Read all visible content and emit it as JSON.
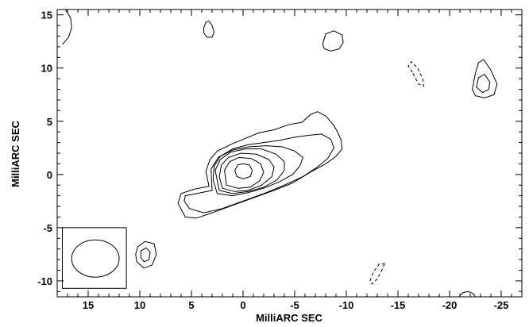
{
  "chart_data": {
    "type": "contour",
    "xlabel": "MilliARC SEC",
    "ylabel": "MilliARC SEC",
    "xlim": [
      18,
      -27
    ],
    "ylim": [
      -11.5,
      15.5
    ],
    "x_reversed": true,
    "x_ticks": [
      15,
      10,
      5,
      0,
      -5,
      -10,
      -15,
      -20,
      -25
    ],
    "y_ticks": [
      15,
      10,
      5,
      0,
      -5,
      -10
    ],
    "x_tick_labels": [
      "15",
      "10",
      "5",
      "0",
      "-5",
      "-10",
      "-15",
      "-20",
      "-25"
    ],
    "y_tick_labels": [
      "15",
      "10",
      "5",
      "0",
      "-5",
      "-10"
    ],
    "beam": {
      "center": [
        14.3,
        -7.9
      ],
      "radius_x": 2.3,
      "radius_y": 1.75,
      "box": [
        [
          17.5,
          -5.0
        ],
        [
          11.3,
          -10.7
        ]
      ]
    },
    "contours": [
      {
        "level": 1,
        "style": "solid",
        "points": [
          [
            3.3,
            -1.1
          ],
          [
            4.8,
            -1.4
          ],
          [
            6.0,
            -1.8
          ],
          [
            6.3,
            -2.7
          ],
          [
            5.6,
            -4.0
          ],
          [
            4.5,
            -4.1
          ],
          [
            3.0,
            -3.6
          ],
          [
            1.0,
            -2.9
          ],
          [
            -1.0,
            -2.2
          ],
          [
            -3.0,
            -1.5
          ],
          [
            -4.8,
            -0.8
          ],
          [
            -6.5,
            0.2
          ],
          [
            -8.0,
            1.0
          ],
          [
            -9.0,
            1.7
          ],
          [
            -9.6,
            2.4
          ],
          [
            -9.5,
            3.2
          ],
          [
            -9.2,
            3.9
          ],
          [
            -8.8,
            4.6
          ],
          [
            -8.0,
            5.5
          ],
          [
            -7.2,
            5.9
          ],
          [
            -6.5,
            5.6
          ],
          [
            -5.7,
            4.9
          ],
          [
            -4.5,
            4.7
          ],
          [
            -3.0,
            4.2
          ],
          [
            -1.5,
            3.9
          ],
          [
            0.0,
            3.3
          ],
          [
            1.0,
            2.9
          ],
          [
            2.5,
            2.2
          ],
          [
            3.2,
            1.4
          ],
          [
            3.6,
            0.3
          ],
          [
            3.3,
            -1.1
          ]
        ]
      },
      {
        "level": 2,
        "style": "solid",
        "points": [
          [
            3.0,
            -1.5
          ],
          [
            4.5,
            -1.8
          ],
          [
            5.6,
            -2.0
          ],
          [
            5.7,
            -2.5
          ],
          [
            5.2,
            -3.2
          ],
          [
            3.8,
            -3.6
          ],
          [
            2.0,
            -3.2
          ],
          [
            0.0,
            -2.5
          ],
          [
            -2.0,
            -1.8
          ],
          [
            -4.0,
            -1.0
          ],
          [
            -5.8,
            -0.2
          ],
          [
            -7.2,
            0.7
          ],
          [
            -8.2,
            1.5
          ],
          [
            -8.8,
            2.5
          ],
          [
            -8.5,
            3.3
          ],
          [
            -7.6,
            3.8
          ],
          [
            -6.5,
            3.7
          ],
          [
            -5.0,
            3.5
          ],
          [
            -3.5,
            3.2
          ],
          [
            -2.0,
            3.0
          ],
          [
            -0.5,
            2.8
          ],
          [
            1.0,
            2.4
          ],
          [
            2.4,
            1.6
          ],
          [
            3.1,
            0.5
          ],
          [
            3.0,
            -1.5
          ]
        ]
      },
      {
        "level": 3,
        "style": "solid",
        "points": [
          [
            2.5,
            -1.8
          ],
          [
            1.0,
            -2.0
          ],
          [
            -0.5,
            -1.7
          ],
          [
            -2.0,
            -1.3
          ],
          [
            -3.5,
            -0.7
          ],
          [
            -4.8,
            0.0
          ],
          [
            -5.5,
            0.8
          ],
          [
            -5.8,
            1.6
          ],
          [
            -5.0,
            2.2
          ],
          [
            -3.8,
            2.6
          ],
          [
            -2.2,
            2.7
          ],
          [
            -0.5,
            2.6
          ],
          [
            1.0,
            2.3
          ],
          [
            2.2,
            1.7
          ],
          [
            2.8,
            0.8
          ],
          [
            2.9,
            -0.5
          ],
          [
            2.5,
            -1.8
          ]
        ]
      },
      {
        "level": 4,
        "style": "solid",
        "points": [
          [
            2.3,
            -1.5
          ],
          [
            1.0,
            -1.8
          ],
          [
            -0.5,
            -1.6
          ],
          [
            -2.0,
            -1.2
          ],
          [
            -3.3,
            -0.5
          ],
          [
            -4.0,
            0.4
          ],
          [
            -4.0,
            1.2
          ],
          [
            -3.2,
            1.9
          ],
          [
            -1.8,
            2.4
          ],
          [
            -0.2,
            2.4
          ],
          [
            1.2,
            2.1
          ],
          [
            2.2,
            1.4
          ],
          [
            2.7,
            0.4
          ],
          [
            2.3,
            -1.5
          ]
        ]
      },
      {
        "level": 5,
        "style": "solid",
        "points": [
          [
            2.0,
            -1.3
          ],
          [
            0.8,
            -1.6
          ],
          [
            -0.5,
            -1.5
          ],
          [
            -1.8,
            -1.0
          ],
          [
            -2.8,
            -0.2
          ],
          [
            -3.0,
            0.7
          ],
          [
            -2.5,
            1.4
          ],
          [
            -1.3,
            1.9
          ],
          [
            0.2,
            2.0
          ],
          [
            1.4,
            1.6
          ],
          [
            2.1,
            0.9
          ],
          [
            2.3,
            -0.2
          ],
          [
            2.0,
            -1.3
          ]
        ]
      },
      {
        "level": 6,
        "style": "solid",
        "points": [
          [
            1.6,
            -1.0
          ],
          [
            0.5,
            -1.3
          ],
          [
            -0.7,
            -1.2
          ],
          [
            -1.6,
            -0.6
          ],
          [
            -2.0,
            0.2
          ],
          [
            -1.7,
            1.0
          ],
          [
            -0.8,
            1.5
          ],
          [
            0.4,
            1.6
          ],
          [
            1.3,
            1.2
          ],
          [
            1.8,
            0.4
          ],
          [
            1.6,
            -1.0
          ]
        ]
      },
      {
        "level": 7,
        "style": "solid",
        "points": [
          [
            0.8,
            0.4
          ],
          [
            0.5,
            0.9
          ],
          [
            0.0,
            1.0
          ],
          [
            -0.6,
            0.9
          ],
          [
            -0.9,
            0.4
          ],
          [
            -0.7,
            -0.2
          ],
          [
            0.0,
            -0.4
          ],
          [
            0.6,
            -0.2
          ],
          [
            0.8,
            0.4
          ]
        ]
      },
      {
        "level": 1,
        "style": "solid",
        "points": [
          [
            17.5,
            12.2
          ],
          [
            16.9,
            12.9
          ],
          [
            16.6,
            13.8
          ],
          [
            16.7,
            14.7
          ],
          [
            17.2,
            15.5
          ]
        ]
      },
      {
        "level": 1,
        "style": "solid",
        "points": [
          [
            3.8,
            13.8
          ],
          [
            3.6,
            14.3
          ],
          [
            3.3,
            14.4
          ],
          [
            3.0,
            14.0
          ],
          [
            2.8,
            13.4
          ],
          [
            3.0,
            12.9
          ],
          [
            3.5,
            12.9
          ],
          [
            3.8,
            13.3
          ],
          [
            3.8,
            13.8
          ]
        ]
      },
      {
        "level": 1,
        "style": "solid",
        "points": [
          [
            -7.7,
            12.2
          ],
          [
            -8.0,
            13.2
          ],
          [
            -8.8,
            13.5
          ],
          [
            -9.6,
            13.1
          ],
          [
            -9.7,
            12.4
          ],
          [
            -9.3,
            11.8
          ],
          [
            -8.5,
            11.6
          ],
          [
            -7.9,
            11.8
          ],
          [
            -7.7,
            12.2
          ]
        ]
      },
      {
        "level": 1,
        "style": "solid",
        "points": [
          [
            -22.2,
            8.0
          ],
          [
            -22.5,
            9.5
          ],
          [
            -22.8,
            10.5
          ],
          [
            -23.3,
            10.8
          ],
          [
            -24.0,
            9.8
          ],
          [
            -24.6,
            8.5
          ],
          [
            -24.3,
            7.5
          ],
          [
            -23.4,
            7.2
          ],
          [
            -22.5,
            7.4
          ],
          [
            -22.2,
            8.0
          ]
        ]
      },
      {
        "level": 2,
        "style": "solid",
        "points": [
          [
            -22.6,
            8.2
          ],
          [
            -22.8,
            9.1
          ],
          [
            -23.4,
            9.4
          ],
          [
            -23.9,
            8.7
          ],
          [
            -23.8,
            8.0
          ],
          [
            -23.2,
            7.7
          ],
          [
            -22.6,
            8.2
          ]
        ]
      },
      {
        "level": 1,
        "style": "solid",
        "points": [
          [
            10.2,
            -6.8
          ],
          [
            9.5,
            -6.3
          ],
          [
            8.6,
            -6.5
          ],
          [
            8.4,
            -7.5
          ],
          [
            8.8,
            -8.5
          ],
          [
            9.6,
            -8.8
          ],
          [
            10.3,
            -8.2
          ],
          [
            10.4,
            -7.5
          ],
          [
            10.2,
            -6.8
          ]
        ]
      },
      {
        "level": 2,
        "style": "solid",
        "points": [
          [
            9.9,
            -7.2
          ],
          [
            9.4,
            -6.9
          ],
          [
            9.0,
            -7.3
          ],
          [
            9.1,
            -8.0
          ],
          [
            9.6,
            -8.2
          ],
          [
            9.9,
            -7.8
          ],
          [
            9.9,
            -7.2
          ]
        ]
      },
      {
        "level": 1,
        "style": "solid",
        "points": [
          [
            -21.0,
            -11.4
          ],
          [
            -21.3,
            -11.1
          ],
          [
            -21.8,
            -11.0
          ],
          [
            -22.3,
            -11.2
          ],
          [
            -22.5,
            -11.5
          ]
        ]
      },
      {
        "level": -1,
        "style": "dashed",
        "points": [
          [
            -16.4,
            9.6
          ],
          [
            -16.0,
            10.2
          ],
          [
            -16.3,
            10.6
          ],
          [
            -16.9,
            10.0
          ],
          [
            -17.4,
            9.0
          ],
          [
            -17.5,
            8.3
          ],
          [
            -17.0,
            8.5
          ],
          [
            -16.4,
            9.6
          ]
        ]
      },
      {
        "level": -1,
        "style": "dashed",
        "points": [
          [
            -13.7,
            -8.4
          ],
          [
            -13.5,
            -8.9
          ],
          [
            -13.0,
            -9.8
          ],
          [
            -12.5,
            -10.3
          ],
          [
            -12.3,
            -10.0
          ],
          [
            -12.6,
            -9.2
          ],
          [
            -13.2,
            -8.4
          ],
          [
            -13.7,
            -8.4
          ]
        ]
      }
    ]
  }
}
